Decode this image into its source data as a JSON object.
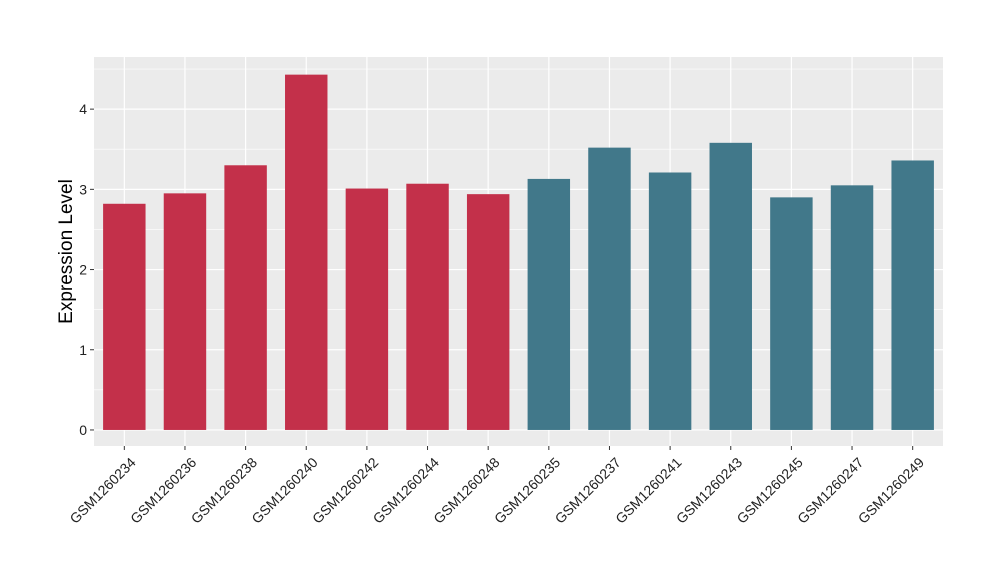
{
  "chart_data": {
    "type": "bar",
    "title": "",
    "xlabel": "",
    "ylabel": "Expression Level",
    "ylim": [
      -0.2,
      4.65
    ],
    "yticks": [
      0,
      1,
      2,
      3,
      4
    ],
    "grid": true,
    "legend": "none",
    "panel_background": "#EBEBEB",
    "gridline_color": "#FFFFFF",
    "categories": [
      "GSM1260234",
      "GSM1260236",
      "GSM1260238",
      "GSM1260240",
      "GSM1260242",
      "GSM1260244",
      "GSM1260248",
      "GSM1260235",
      "GSM1260237",
      "GSM1260241",
      "GSM1260243",
      "GSM1260245",
      "GSM1260247",
      "GSM1260249"
    ],
    "values": [
      2.82,
      2.95,
      3.3,
      4.43,
      3.01,
      3.07,
      2.94,
      3.13,
      3.52,
      3.21,
      3.58,
      2.9,
      3.05,
      3.36
    ],
    "colors": [
      "#C3304A",
      "#C3304A",
      "#C3304A",
      "#C3304A",
      "#C3304A",
      "#C3304A",
      "#C3304A",
      "#41788A",
      "#41788A",
      "#41788A",
      "#41788A",
      "#41788A",
      "#41788A",
      "#41788A"
    ]
  }
}
